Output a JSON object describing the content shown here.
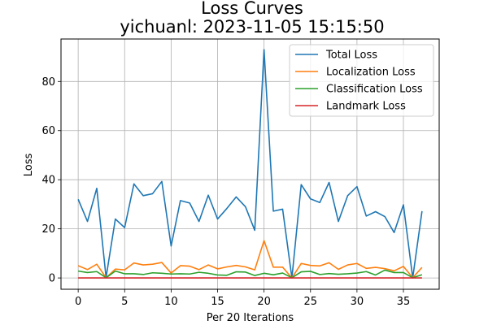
{
  "chart_data": {
    "type": "line",
    "title_line1": "Loss Curves",
    "title_line2": "yichuanl: 2023-11-05 15:15:50",
    "xlabel": "Per 20 Iterations",
    "ylabel": "Loss",
    "xlim": [
      -1.85,
      38.85
    ],
    "ylim": [
      -4.6,
      97.3
    ],
    "xticks": [
      0,
      5,
      10,
      15,
      20,
      25,
      30,
      35
    ],
    "yticks": [
      0,
      20,
      40,
      60,
      80
    ],
    "grid": true,
    "legend_position": "top-right",
    "x": [
      0,
      1,
      2,
      3,
      4,
      5,
      6,
      7,
      8,
      9,
      10,
      11,
      12,
      13,
      14,
      15,
      16,
      17,
      18,
      19,
      20,
      21,
      22,
      23,
      24,
      25,
      26,
      27,
      28,
      29,
      30,
      31,
      32,
      33,
      34,
      35,
      36,
      37
    ],
    "series": [
      {
        "name": "Total Loss",
        "color": "#1f77b4",
        "values": [
          32,
          23,
          36.5,
          0.2,
          24,
          20.5,
          38.3,
          33.5,
          34.3,
          39.3,
          13,
          31.5,
          30.5,
          23,
          33.7,
          24,
          28.3,
          33,
          29,
          19.4,
          93,
          27.2,
          28,
          0,
          38,
          32.2,
          30.7,
          38.9,
          23,
          33.5,
          37.2,
          25.2,
          27,
          25,
          18.5,
          29.8,
          0,
          27.2
        ]
      },
      {
        "name": "Localization Loss",
        "color": "#ff7f0e",
        "values": [
          5,
          3.4,
          5.6,
          0.1,
          3.6,
          3.3,
          6.1,
          5.3,
          5.6,
          6.3,
          2,
          5,
          4.8,
          3.4,
          5.3,
          3.7,
          4.5,
          5.1,
          4.5,
          3.3,
          15.2,
          4.4,
          4.4,
          0,
          5.9,
          5.1,
          4.9,
          6.2,
          3.5,
          5.3,
          5.9,
          3.9,
          4.3,
          3.8,
          2.9,
          4.7,
          0.1,
          4.3
        ]
      },
      {
        "name": "Classification Loss",
        "color": "#2ca02c",
        "values": [
          2.8,
          2.2,
          2.6,
          0.1,
          2.8,
          1.7,
          1.7,
          1.4,
          2.1,
          1.9,
          1.6,
          1.7,
          1.6,
          2.3,
          1.9,
          1.2,
          1.1,
          2.5,
          2.4,
          1,
          1.9,
          1.3,
          2,
          0.1,
          2.5,
          2.7,
          1.4,
          1.8,
          1.5,
          1.7,
          2,
          2.6,
          1.2,
          3.2,
          2.2,
          2.2,
          0.1,
          1.3
        ]
      },
      {
        "name": "Landmark Loss",
        "color": "#d62728",
        "values": [
          0,
          0,
          0,
          0,
          0,
          0,
          0,
          0,
          0,
          0,
          0,
          0,
          0,
          0,
          0,
          0,
          0,
          0,
          0,
          0,
          0,
          0,
          0,
          0,
          0,
          0,
          0,
          0,
          0,
          0,
          0,
          0,
          0,
          0,
          0,
          0,
          0,
          0
        ]
      }
    ]
  }
}
